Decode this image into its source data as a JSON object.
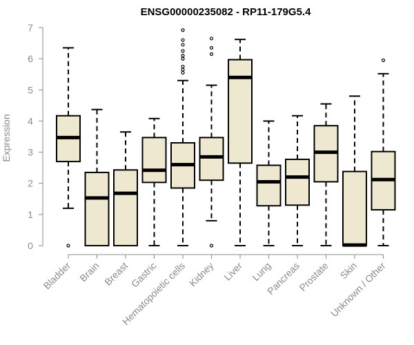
{
  "chart_data": {
    "type": "box",
    "title": "ENSG00000235082 - RP11-179G5.4",
    "ylabel": "Expression",
    "ylim": [
      0,
      7
    ],
    "yticks": [
      0,
      1,
      2,
      3,
      4,
      5,
      6,
      7
    ],
    "box_color": "#efe8d0",
    "categories": [
      "Bladder",
      "Brain",
      "Breast",
      "Gastric",
      "Hematopoietic cells",
      "Kidney",
      "Liver",
      "Lung",
      "Pancreas",
      "Prostate",
      "Skin",
      "Unknown / Other"
    ],
    "boxes": [
      {
        "min": 1.2,
        "q1": 2.7,
        "median": 3.47,
        "q3": 4.17,
        "max": 6.35,
        "outliers": [
          0
        ]
      },
      {
        "min": 0,
        "q1": 0,
        "median": 1.53,
        "q3": 2.35,
        "max": 4.37,
        "outliers": []
      },
      {
        "min": 0,
        "q1": 0,
        "median": 1.68,
        "q3": 2.43,
        "max": 3.65,
        "outliers": []
      },
      {
        "min": 0,
        "q1": 2.03,
        "median": 2.42,
        "q3": 3.47,
        "max": 4.08,
        "outliers": []
      },
      {
        "min": 0,
        "q1": 1.85,
        "median": 2.6,
        "q3": 3.3,
        "max": 5.3,
        "outliers": [
          5.55,
          5.65,
          5.75,
          6.0,
          6.1,
          6.25,
          6.45,
          6.6,
          6.92
        ]
      },
      {
        "min": 0.8,
        "q1": 2.1,
        "median": 2.85,
        "q3": 3.47,
        "max": 5.15,
        "outliers": [
          0,
          6.15,
          6.35,
          6.65
        ]
      },
      {
        "min": 0,
        "q1": 2.65,
        "median": 5.4,
        "q3": 5.97,
        "max": 6.62,
        "outliers": []
      },
      {
        "min": 0,
        "q1": 1.28,
        "median": 2.05,
        "q3": 2.58,
        "max": 4.0,
        "outliers": []
      },
      {
        "min": 0,
        "q1": 1.3,
        "median": 2.2,
        "q3": 2.77,
        "max": 4.17,
        "outliers": []
      },
      {
        "min": 0,
        "q1": 2.05,
        "median": 3.0,
        "q3": 3.85,
        "max": 4.55,
        "outliers": []
      },
      {
        "min": 0,
        "q1": 0,
        "median": 0.02,
        "q3": 2.38,
        "max": 4.8,
        "outliers": []
      },
      {
        "min": 0,
        "q1": 1.15,
        "median": 2.12,
        "q3": 3.02,
        "max": 5.52,
        "outliers": [
          5.95
        ]
      }
    ]
  }
}
